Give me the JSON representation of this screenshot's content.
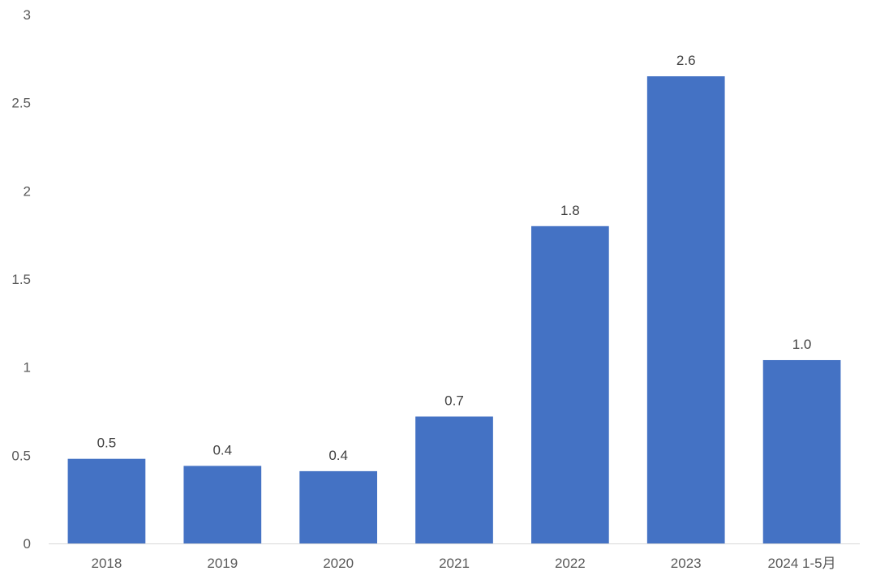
{
  "chart_data": {
    "type": "bar",
    "title": "",
    "xlabel": "",
    "ylabel": "",
    "categories": [
      "2018",
      "2019",
      "2020",
      "2021",
      "2022",
      "2023",
      "2024 1-5月"
    ],
    "values": [
      0.48,
      0.44,
      0.41,
      0.72,
      1.8,
      2.65,
      1.04
    ],
    "value_labels": [
      "0.5",
      "0.4",
      "0.4",
      "0.7",
      "1.8",
      "2.6",
      "1.0"
    ],
    "ylim": [
      0,
      3
    ],
    "yticks": [
      0,
      0.5,
      1,
      1.5,
      2,
      2.5,
      3
    ],
    "ytick_labels": [
      "0",
      "0.5",
      "1",
      "1.5",
      "2",
      "2.5",
      "3"
    ],
    "grid": false,
    "legend": "none",
    "bar_color": "#4472C4",
    "axis_color": "#D9D9D9"
  }
}
